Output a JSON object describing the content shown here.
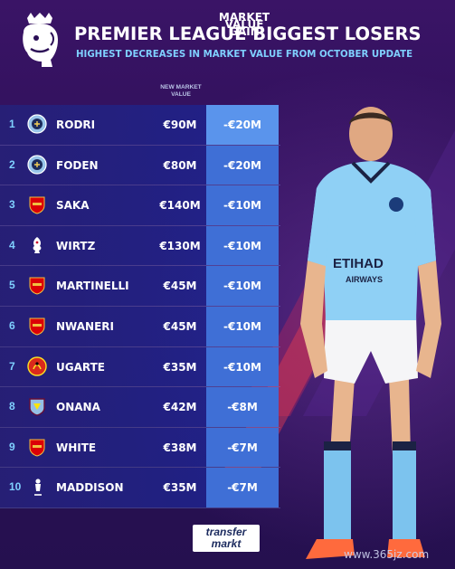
{
  "header": {
    "title": "PREMIER LEAGUE BIGGEST LOSERS",
    "subtitle": "HIGHEST DECREASES IN MARKET VALUE FROM OCTOBER UPDATE"
  },
  "columns": {
    "new_value": "NEW MARKET VALUE",
    "gain": "MARKET VALUE GAIN"
  },
  "rows": [
    {
      "rank": "1",
      "club": "manchester-city-crest",
      "name": "RODRI",
      "value": "€90M",
      "gain": "-€20M"
    },
    {
      "rank": "2",
      "club": "manchester-city-crest",
      "name": "FODEN",
      "value": "€80M",
      "gain": "-€20M"
    },
    {
      "rank": "3",
      "club": "arsenal-crest",
      "name": "SAKA",
      "value": "€140M",
      "gain": "-€10M"
    },
    {
      "rank": "4",
      "club": "liverpool-crest",
      "name": "WIRTZ",
      "value": "€130M",
      "gain": "-€10M"
    },
    {
      "rank": "5",
      "club": "arsenal-crest",
      "name": "MARTINELLI",
      "value": "€45M",
      "gain": "-€10M"
    },
    {
      "rank": "6",
      "club": "arsenal-crest",
      "name": "NWANERI",
      "value": "€45M",
      "gain": "-€10M"
    },
    {
      "rank": "7",
      "club": "manchester-united-crest",
      "name": "UGARTE",
      "value": "€35M",
      "gain": "-€10M"
    },
    {
      "rank": "8",
      "club": "aston-villa-crest",
      "name": "ONANA",
      "value": "€42M",
      "gain": "-€8M"
    },
    {
      "rank": "9",
      "club": "arsenal-crest",
      "name": "WHITE",
      "value": "€38M",
      "gain": "-€7M"
    },
    {
      "rank": "10",
      "club": "tottenham-crest",
      "name": "MADDISON",
      "value": "€35M",
      "gain": "-€7M"
    }
  ],
  "player": {
    "shirt_sponsor_1": "ETIHAD",
    "shirt_sponsor_2": "AIRWAYS"
  },
  "footer": {
    "brand_line1": "transfer",
    "brand_line2": "markt",
    "watermark": "www.365jz.com"
  },
  "colors": {
    "accent_light_blue": "#7fd0ff",
    "gain_column": "#3f6fd6",
    "gain_column_first": "#5a94ec",
    "background": "#2b0f56"
  }
}
